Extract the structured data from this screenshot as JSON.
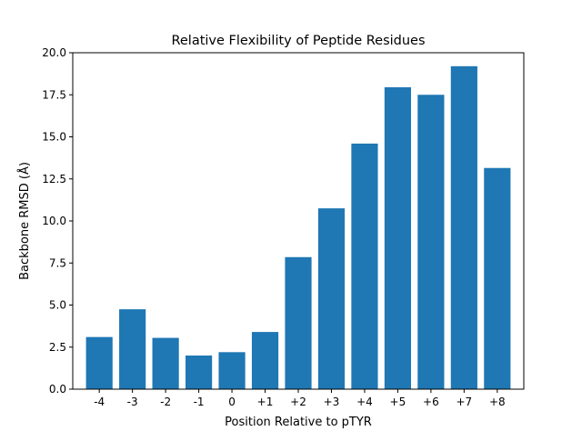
{
  "chart_data": {
    "type": "bar",
    "title": "Relative Flexibility of Peptide Residues",
    "xlabel": "Position Relative to pTYR",
    "ylabel": "Backbone RMSD (Å)",
    "categories": [
      "-4",
      "-3",
      "-2",
      "-1",
      "0",
      "+1",
      "+2",
      "+3",
      "+4",
      "+5",
      "+6",
      "+7",
      "+8"
    ],
    "values": [
      3.1,
      4.75,
      3.05,
      2.0,
      2.2,
      3.4,
      7.85,
      10.75,
      14.6,
      17.95,
      17.5,
      19.2,
      13.15
    ],
    "ylim": [
      0,
      20.0
    ],
    "yticks": [
      "0.0",
      "2.5",
      "5.0",
      "7.5",
      "10.0",
      "12.5",
      "15.0",
      "17.5",
      "20.0"
    ],
    "bar_color": "#1f77b4",
    "grid": false,
    "legend": "none"
  }
}
